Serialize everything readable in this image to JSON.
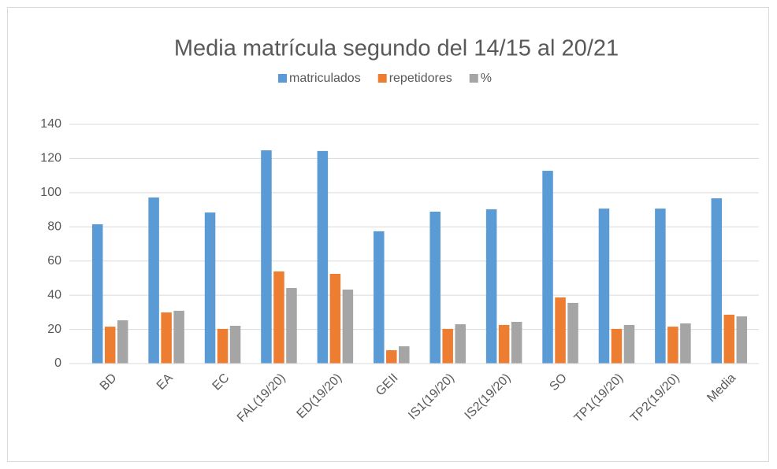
{
  "chart_data": {
    "type": "bar",
    "title": "Media matrícula segundo del 14/15 al 20/21",
    "categories": [
      "BD",
      "EA",
      "EC",
      "FAL(19/20)",
      "ED(19/20)",
      "GEII",
      "IS1(19/20)",
      "IS2(19/20)",
      "SO",
      "TP1(19/20)",
      "TP2(19/20)",
      "Media"
    ],
    "series": [
      {
        "name": "matriculados",
        "color": "#5b9bd5",
        "values": [
          81.5,
          97.2,
          88.4,
          124.8,
          124.4,
          77.4,
          88.9,
          90.3,
          112.8,
          90.7,
          90.7,
          96.7
        ]
      },
      {
        "name": "repetidores",
        "color": "#ed7d31",
        "values": [
          21.6,
          29.9,
          20.3,
          53.9,
          52.5,
          7.8,
          20.3,
          22.6,
          38.7,
          20.3,
          21.6,
          28.6
        ]
      },
      {
        "name": "%",
        "color": "#a5a5a5",
        "values": [
          25.3,
          30.9,
          22.1,
          44.2,
          43.3,
          10.1,
          23.0,
          24.4,
          35.5,
          22.6,
          23.5,
          27.6
        ]
      }
    ],
    "ylim": [
      0,
      140
    ],
    "yticks": [
      0,
      20,
      40,
      60,
      80,
      100,
      120,
      140
    ],
    "grid": true,
    "legend": "top"
  }
}
